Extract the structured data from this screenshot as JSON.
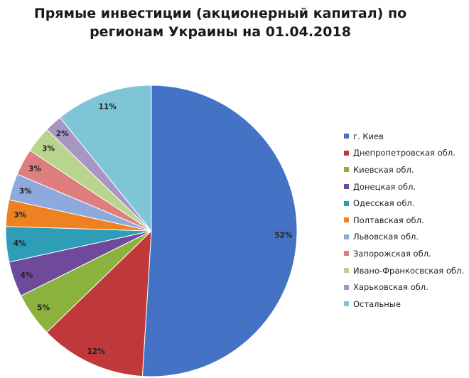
{
  "chart_data": {
    "type": "pie",
    "title_lines": [
      "Прямые инвестиции (акционерный капитал) по",
      "регионам Украины на 01.04.2018"
    ],
    "legend_position": "right",
    "slices": [
      {
        "name": "г. Киев",
        "value": 52,
        "label": "52%",
        "color": "#4472C4"
      },
      {
        "name": "Днепропетровская обл.",
        "value": 12,
        "label": "12%",
        "color": "#C0393A"
      },
      {
        "name": "Киевская обл.",
        "value": 5,
        "label": "5%",
        "color": "#8BB23D"
      },
      {
        "name": "Донецкая обл.",
        "value": 4,
        "label": "4%",
        "color": "#6F4A9B"
      },
      {
        "name": "Одесская обл.",
        "value": 4,
        "label": "4%",
        "color": "#2E9EB8"
      },
      {
        "name": "Полтавская обл.",
        "value": 3,
        "label": "3%",
        "color": "#EE8121"
      },
      {
        "name": "Львовская обл.",
        "value": 3,
        "label": "3%",
        "color": "#8EA9DB"
      },
      {
        "name": "Запорожская обл.",
        "value": 3,
        "label": "3%",
        "color": "#DE7E7E"
      },
      {
        "name": "Ивано-Франкосвская обл.",
        "value": 3,
        "label": "3%",
        "color": "#B7D58C"
      },
      {
        "name": "Харьковская обл.",
        "value": 2,
        "label": "2%",
        "color": "#A796C4"
      },
      {
        "name": "Остальные",
        "value": 11,
        "label": "11%",
        "color": "#7EC5D8"
      }
    ]
  }
}
